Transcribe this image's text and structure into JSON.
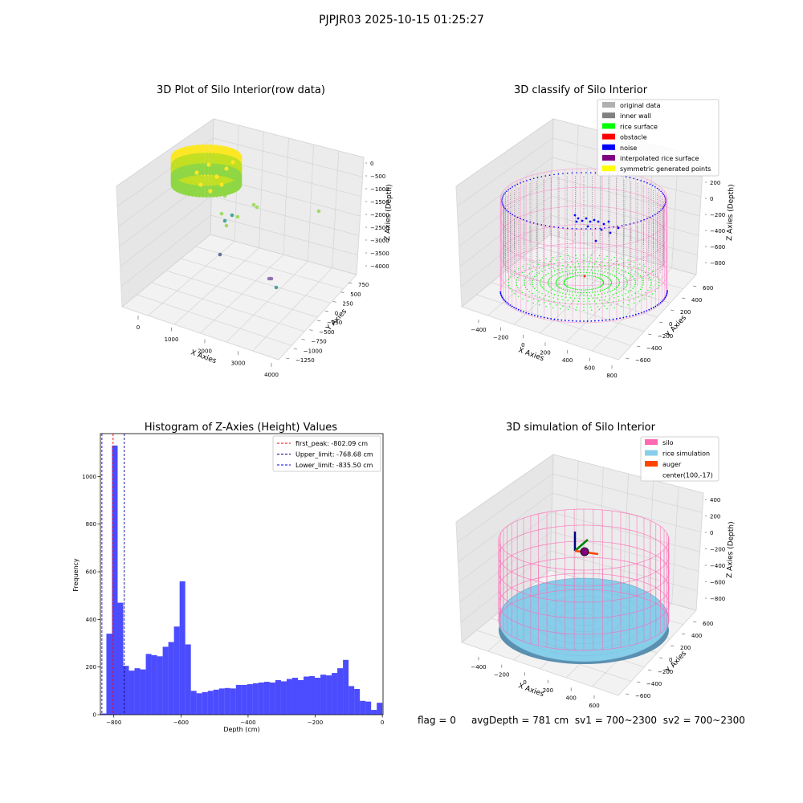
{
  "suptitle": "PJPJR03 2025-10-15 01:25:27",
  "footer": {
    "flag": "flag = 0",
    "avg": "avgDepth = 781 cm",
    "sv1": "sv1 = 700~2300",
    "sv2": "sv2 = 700~2300"
  },
  "chart_data": [
    {
      "type": "scatter",
      "projection": "3d",
      "title": "3D Plot of Silo Interior(row data)",
      "xlabel": "X Axies",
      "ylabel": "Y Axies",
      "zlabel": "Z Axies (Depth)",
      "x_ticks": [
        "0",
        "1000",
        "2000",
        "3000",
        "4000"
      ],
      "y_ticks": [
        "750",
        "500",
        "250",
        "0",
        "−250",
        "−500",
        "−750",
        "−1000",
        "−1250"
      ],
      "z_ticks": [
        "0",
        "−500",
        "−1000",
        "−1500",
        "−2000",
        "−2500",
        "−3000",
        "−3500",
        "−4000"
      ],
      "colormap": "viridis",
      "colors": {
        "high": "#fde725",
        "mid": "#8fd744",
        "low": "#21918c",
        "lowest": "#3b528b",
        "outlier": "#7e57a4"
      }
    },
    {
      "type": "scatter",
      "projection": "3d",
      "title": "3D classify of Silo Interior",
      "xlabel": "X Axies",
      "ylabel": "Y Axies",
      "zlabel": "Z Axies (Depth)",
      "x_ticks": [
        "−400",
        "−200",
        "0",
        "200",
        "400",
        "600",
        "800"
      ],
      "y_ticks": [
        "600",
        "400",
        "200",
        "0",
        "−200",
        "−400",
        "−600"
      ],
      "z_ticks": [
        "200",
        "0",
        "−200",
        "−400",
        "−600",
        "−800"
      ],
      "legend": [
        {
          "label": "original data",
          "color": "#b0b0b0"
        },
        {
          "label": "inner wall",
          "color": "#808080"
        },
        {
          "label": "rice surface",
          "color": "#00ff00"
        },
        {
          "label": "obstacle",
          "color": "#ff0000"
        },
        {
          "label": "noise",
          "color": "#0000ff"
        },
        {
          "label": "interpolated rice surface",
          "color": "#800080"
        },
        {
          "label": "symmetric generated points",
          "color": "#ffff00"
        }
      ],
      "legend_loc": "upper right",
      "wire_color": "#ff88cc"
    },
    {
      "type": "bar",
      "subtype": "histogram",
      "title": "Histogram of Z-Axies (Height) Values",
      "xlabel": "Depth (cm)",
      "ylabel": "Frequency",
      "xlim": [
        -840,
        2
      ],
      "ylim": [
        0,
        1180
      ],
      "x_ticks": [
        -800,
        -600,
        -400,
        -200,
        0
      ],
      "x_tick_labels": [
        "−800",
        "−600",
        "−400",
        "−200",
        "0"
      ],
      "y_ticks": [
        0,
        200,
        400,
        600,
        800,
        1000
      ],
      "bin_width": 16.78,
      "bin_left_edges": [
        -838.9,
        -822.12,
        -805.34,
        -788.56,
        -771.78,
        -755.0,
        -738.22,
        -721.44,
        -704.66,
        -687.88,
        -671.1,
        -654.32,
        -637.54,
        -620.76,
        -603.98,
        -587.2,
        -570.42,
        -553.64,
        -536.86,
        -520.08,
        -503.3,
        -486.52,
        -469.74,
        -452.96,
        -436.18,
        -419.4,
        -402.62,
        -385.84,
        -369.06,
        -352.28,
        -335.5,
        -318.72,
        -301.94,
        -285.16,
        -268.38,
        -251.6,
        -234.82,
        -218.04,
        -201.26,
        -184.48,
        -167.7,
        -150.92,
        -134.14,
        -117.36,
        -100.58,
        -83.8,
        -67.02,
        -50.24,
        -33.46,
        -16.68
      ],
      "values": [
        5,
        340,
        1130,
        470,
        205,
        185,
        195,
        190,
        255,
        250,
        245,
        285,
        305,
        370,
        560,
        295,
        100,
        90,
        95,
        100,
        105,
        110,
        112,
        110,
        125,
        125,
        128,
        132,
        135,
        138,
        135,
        145,
        140,
        150,
        155,
        145,
        160,
        162,
        155,
        168,
        165,
        175,
        195,
        230,
        120,
        108,
        58,
        55,
        20,
        50
      ],
      "bar_color": "#0000ff",
      "vlines": [
        {
          "x": -802.09,
          "color": "#ff0000",
          "label": "first_peak: -802.09 cm"
        },
        {
          "x": -768.68,
          "color": "#000080",
          "label": "Upper_limit: -768.68 cm"
        },
        {
          "x": -835.5,
          "color": "#0000ff",
          "label": "Lower_limit: -835.50 cm"
        }
      ],
      "legend_loc": "upper right"
    },
    {
      "type": "scatter",
      "projection": "3d",
      "title": "3D simulation of Silo Interior",
      "xlabel": "X Axies",
      "ylabel": "Y Axies",
      "zlabel": "Z Axies (Depth)",
      "x_ticks": [
        "−400",
        "−200",
        "0",
        "200",
        "400",
        "600"
      ],
      "y_ticks": [
        "600",
        "400",
        "200",
        "0",
        "−200",
        "−400",
        "−600"
      ],
      "z_ticks": [
        "400",
        "200",
        "0",
        "−200",
        "−400",
        "−600",
        "−800"
      ],
      "legend": [
        {
          "label": "silo",
          "color": "#ff69b4"
        },
        {
          "label": "rice simulation",
          "color": "#87ceeb"
        },
        {
          "label": "auger",
          "color": "#ff4500"
        },
        {
          "label": "center(100,-17)",
          "color": ""
        }
      ],
      "legend_loc": "upper right"
    }
  ]
}
